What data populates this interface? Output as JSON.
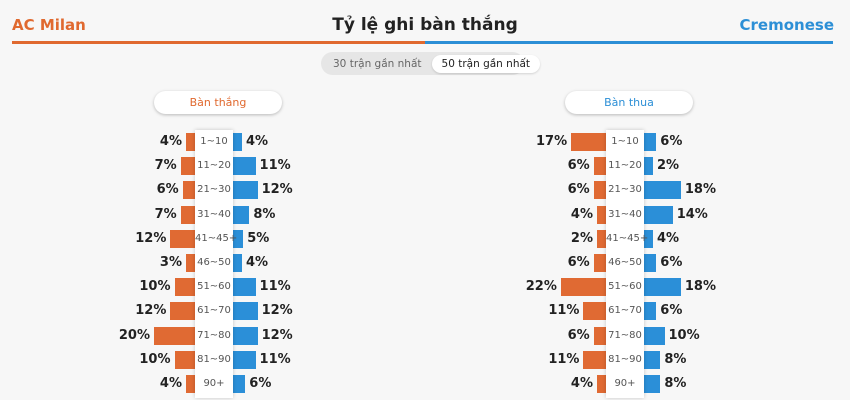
{
  "header": {
    "home_team": "AC Milan",
    "away_team": "Cremonese",
    "title": "Tỷ lệ ghi bàn thắng"
  },
  "toggle": {
    "options": [
      "30 trận gần nhất",
      "50 trận gần nhất"
    ],
    "active": "50 trận gần nhất"
  },
  "colors": {
    "home": "#e06a33",
    "away": "#2b8fd8"
  },
  "segments": [
    "1~10",
    "11~20",
    "21~30",
    "31~40",
    "41~45+",
    "46~50",
    "51~60",
    "61~70",
    "71~80",
    "81~90",
    "90+"
  ],
  "scored": {
    "label": "Bàn thắng",
    "home": [
      4,
      7,
      6,
      7,
      12,
      3,
      10,
      12,
      20,
      10,
      4
    ],
    "away": [
      4,
      11,
      12,
      8,
      5,
      4,
      11,
      12,
      12,
      11,
      6
    ]
  },
  "conceded": {
    "label": "Bàn thua",
    "home": [
      17,
      6,
      6,
      4,
      2,
      6,
      22,
      11,
      6,
      11,
      4
    ],
    "away": [
      6,
      2,
      18,
      14,
      4,
      6,
      18,
      6,
      10,
      8,
      8
    ]
  }
}
